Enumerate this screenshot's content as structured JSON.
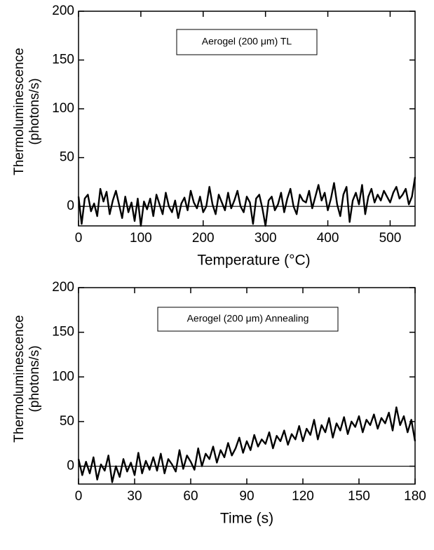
{
  "chart_data": [
    {
      "type": "line",
      "annotation": "Aerogel (200 μm) TL",
      "y_label": [
        "Thermoluminescence",
        "(photons/s)"
      ],
      "x_label": "Temperature (°C)",
      "xlim": [
        0,
        540
      ],
      "xticks": [
        0,
        100,
        200,
        300,
        400,
        500
      ],
      "ylim": [
        -20,
        200
      ],
      "yticks": [
        0,
        50,
        100,
        150,
        200
      ],
      "zero_line": true,
      "x": [
        0,
        5,
        10,
        15,
        20,
        25,
        30,
        35,
        40,
        45,
        50,
        55,
        60,
        65,
        70,
        75,
        80,
        85,
        90,
        95,
        100,
        105,
        110,
        115,
        120,
        125,
        130,
        135,
        140,
        145,
        150,
        155,
        160,
        165,
        170,
        175,
        180,
        185,
        190,
        195,
        200,
        205,
        210,
        215,
        220,
        225,
        230,
        235,
        240,
        245,
        250,
        255,
        260,
        265,
        270,
        275,
        280,
        285,
        290,
        295,
        300,
        305,
        310,
        315,
        320,
        325,
        330,
        335,
        340,
        345,
        350,
        355,
        360,
        365,
        370,
        375,
        380,
        385,
        390,
        395,
        400,
        405,
        410,
        415,
        420,
        425,
        430,
        435,
        440,
        445,
        450,
        455,
        460,
        465,
        470,
        475,
        480,
        485,
        490,
        495,
        500,
        505,
        510,
        515,
        520,
        525,
        530,
        535,
        540
      ],
      "series": [
        {
          "color": "#000000",
          "values": [
            10,
            -18,
            8,
            12,
            -5,
            3,
            -10,
            18,
            5,
            15,
            -8,
            6,
            16,
            2,
            -12,
            10,
            -6,
            4,
            -15,
            8,
            -20,
            5,
            -3,
            8,
            -10,
            12,
            2,
            -8,
            14,
            0,
            -6,
            6,
            -12,
            3,
            9,
            -4,
            16,
            4,
            -2,
            10,
            -6,
            0,
            20,
            2,
            -8,
            12,
            4,
            -4,
            14,
            -2,
            6,
            16,
            0,
            -6,
            10,
            4,
            -18,
            8,
            12,
            -2,
            -20,
            6,
            10,
            -4,
            2,
            14,
            -6,
            8,
            18,
            0,
            -8,
            12,
            6,
            4,
            16,
            -2,
            10,
            22,
            6,
            14,
            -4,
            8,
            24,
            2,
            -10,
            12,
            20,
            -16,
            6,
            14,
            2,
            22,
            -8,
            10,
            18,
            4,
            12,
            6,
            16,
            10,
            4,
            14,
            20,
            8,
            12,
            18,
            2,
            10,
            30
          ]
        }
      ]
    },
    {
      "type": "line",
      "annotation": "Aerogel (200 μm) Annealing",
      "y_label": [
        "Thermoluminescence",
        "(photons/s)"
      ],
      "x_label": "Time (s)",
      "xlim": [
        0,
        180
      ],
      "xticks": [
        0,
        30,
        60,
        90,
        120,
        150,
        180
      ],
      "ylim": [
        -20,
        200
      ],
      "yticks": [
        0,
        50,
        100,
        150,
        200
      ],
      "zero_line": true,
      "x": [
        0,
        2,
        4,
        6,
        8,
        10,
        12,
        14,
        16,
        18,
        20,
        22,
        24,
        26,
        28,
        30,
        32,
        34,
        36,
        38,
        40,
        42,
        44,
        46,
        48,
        50,
        52,
        54,
        56,
        58,
        60,
        62,
        64,
        66,
        68,
        70,
        72,
        74,
        76,
        78,
        80,
        82,
        84,
        86,
        88,
        90,
        92,
        94,
        96,
        98,
        100,
        102,
        104,
        106,
        108,
        110,
        112,
        114,
        116,
        118,
        120,
        122,
        124,
        126,
        128,
        130,
        132,
        134,
        136,
        138,
        140,
        142,
        144,
        146,
        148,
        150,
        152,
        154,
        156,
        158,
        160,
        162,
        164,
        166,
        168,
        170,
        172,
        174,
        176,
        178,
        180
      ],
      "series": [
        {
          "color": "#000000",
          "values": [
            8,
            -10,
            5,
            -8,
            10,
            -15,
            2,
            -5,
            12,
            -18,
            0,
            -12,
            8,
            -6,
            4,
            -10,
            15,
            -8,
            6,
            -4,
            10,
            -5,
            14,
            -8,
            8,
            2,
            -6,
            18,
            -3,
            12,
            5,
            -4,
            20,
            0,
            14,
            8,
            22,
            4,
            18,
            10,
            26,
            12,
            20,
            32,
            15,
            28,
            18,
            35,
            22,
            30,
            25,
            38,
            20,
            34,
            28,
            40,
            24,
            36,
            30,
            45,
            28,
            42,
            35,
            52,
            30,
            46,
            38,
            54,
            32,
            48,
            40,
            55,
            36,
            50,
            44,
            56,
            38,
            52,
            46,
            58,
            42,
            54,
            48,
            60,
            40,
            66,
            46,
            56,
            38,
            52,
            28
          ]
        }
      ]
    }
  ]
}
